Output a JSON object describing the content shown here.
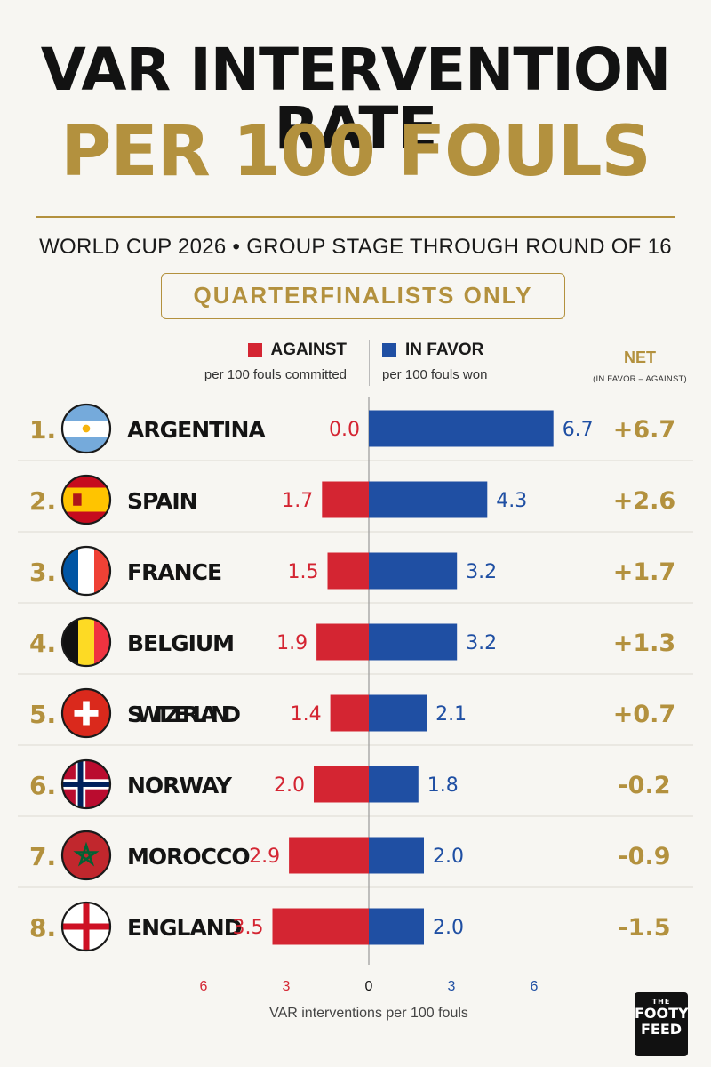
{
  "header": {
    "title_line1": "VAR INTERVENTION RATE",
    "title_line2": "PER 100 FOULS",
    "subtitle": "WORLD CUP 2026 • GROUP STAGE THROUGH ROUND OF 16",
    "badge": "QUARTERFINALISTS ONLY"
  },
  "legend": {
    "against_label": "AGAINST",
    "against_sub": "per 100 fouls committed",
    "favor_label": "IN FAVOR",
    "favor_sub": "per 100 fouls won",
    "net_label": "NET",
    "net_sub": "(IN FAVOR – AGAINST)"
  },
  "colors": {
    "against": "#d42532",
    "favor": "#1f4fa3",
    "gold": "#b3913e",
    "text": "#141414"
  },
  "brand": {
    "line1": "THE",
    "line2": "FOOTY",
    "line3": "FEED"
  },
  "chart_data": {
    "type": "bar",
    "orientation": "horizontal-diverging",
    "xlabel": "VAR interventions per 100 fouls",
    "xlim": [
      -6.5,
      6.5
    ],
    "x_ticks": [
      {
        "value": -6,
        "label": "6"
      },
      {
        "value": -3,
        "label": "3"
      },
      {
        "value": 0,
        "label": "0"
      },
      {
        "value": 3,
        "label": "3"
      },
      {
        "value": 6,
        "label": "6"
      }
    ],
    "categories": [
      "ARGENTINA",
      "SPAIN",
      "FRANCE",
      "BELGIUM",
      "SWITZERLAND",
      "NORWAY",
      "MOROCCO",
      "ENGLAND"
    ],
    "ranks": [
      "1.",
      "2.",
      "3.",
      "4.",
      "5.",
      "6.",
      "7.",
      "8."
    ],
    "flags": [
      "argentina-flag",
      "spain-flag",
      "france-flag",
      "belgium-flag",
      "switzerland-flag",
      "norway-flag",
      "morocco-flag",
      "england-flag"
    ],
    "series": [
      {
        "name": "AGAINST",
        "values": [
          0.0,
          1.7,
          1.5,
          1.9,
          1.4,
          2.0,
          2.9,
          3.5
        ],
        "labels": [
          "0.0",
          "1.7",
          "1.5",
          "1.9",
          "1.4",
          "2.0",
          "2.9",
          "3.5"
        ]
      },
      {
        "name": "IN FAVOR",
        "values": [
          6.7,
          4.3,
          3.2,
          3.2,
          2.1,
          1.8,
          2.0,
          2.0
        ],
        "labels": [
          "6.7",
          "4.3",
          "3.2",
          "3.2",
          "2.1",
          "1.8",
          "2.0",
          "2.0"
        ]
      }
    ],
    "net": [
      "+6.7",
      "+2.6",
      "+1.7",
      "+1.3",
      "+0.7",
      "-0.2",
      "-0.9",
      "-1.5"
    ]
  }
}
